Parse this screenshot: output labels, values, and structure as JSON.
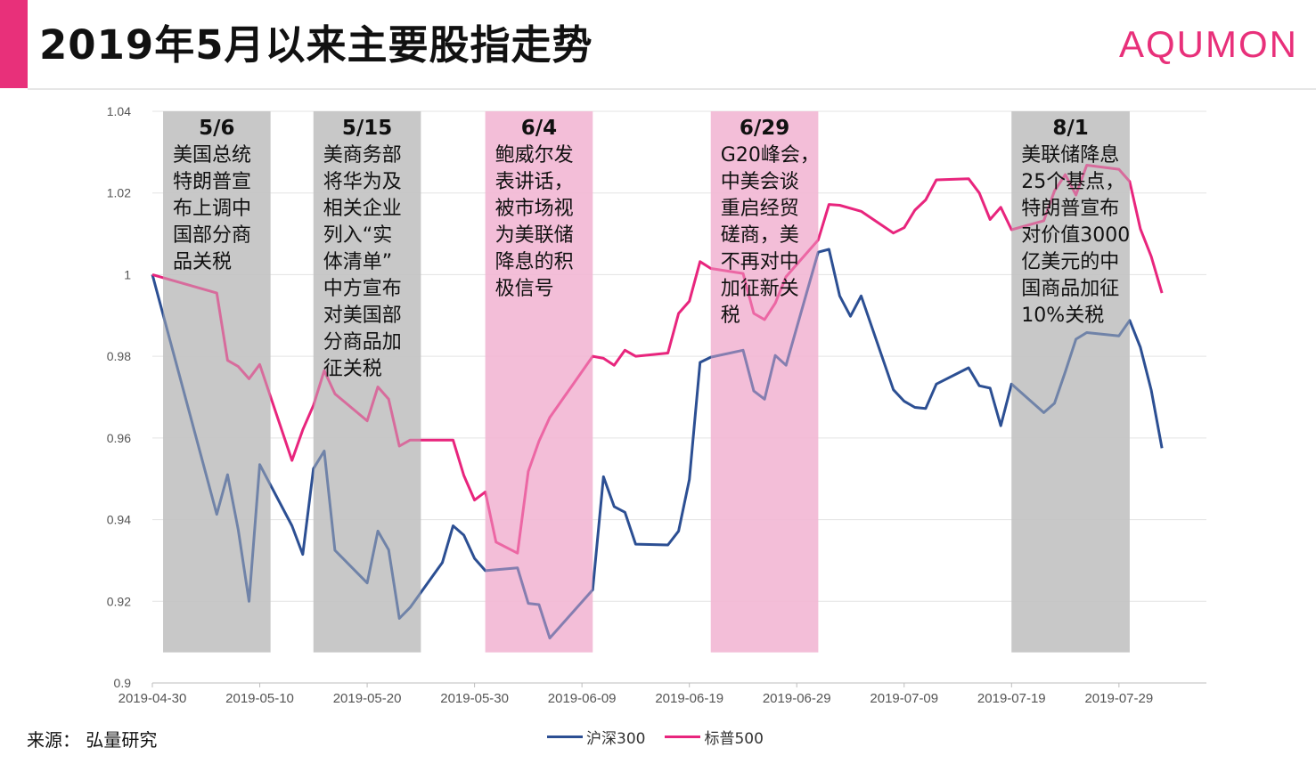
{
  "header": {
    "title": "2019年5月以来主要股指走势",
    "brand": "AQUMON"
  },
  "footer": {
    "source": "来源： 弘量研究"
  },
  "colors": {
    "accent": "#e8307a",
    "csi300": "#2c4f93",
    "sp500": "#e8257d",
    "gray_band": "#c4c4c4",
    "pink_band": "#f2b8d4"
  },
  "chart_data": {
    "type": "line",
    "title": "2019年5月以来主要股指走势",
    "xlabel": "",
    "ylabel": "",
    "ylim": [
      0.9,
      1.04
    ],
    "y_ticks": [
      "0.9",
      "0.92",
      "0.94",
      "0.96",
      "0.98",
      "1",
      "1.02",
      "1.04"
    ],
    "x_ticks": [
      "2019-04-30",
      "2019-05-10",
      "2019-05-20",
      "2019-05-30",
      "2019-06-09",
      "2019-06-19",
      "2019-06-29",
      "2019-07-09",
      "2019-07-19",
      "2019-07-29"
    ],
    "x_range": [
      "2019-04-30",
      "2019-08-01"
    ],
    "grid": true,
    "legend_position": "bottom",
    "series": [
      {
        "name": "沪深300",
        "color": "#2c4f93",
        "points": [
          [
            "2019-04-30",
            1.0
          ],
          [
            "2019-05-06",
            0.9413
          ],
          [
            "2019-05-07",
            0.951
          ],
          [
            "2019-05-08",
            0.9375
          ],
          [
            "2019-05-09",
            0.92
          ],
          [
            "2019-05-10",
            0.9535
          ],
          [
            "2019-05-13",
            0.9385
          ],
          [
            "2019-05-14",
            0.9315
          ],
          [
            "2019-05-15",
            0.9525
          ],
          [
            "2019-05-16",
            0.9568
          ],
          [
            "2019-05-17",
            0.9325
          ],
          [
            "2019-05-20",
            0.9245
          ],
          [
            "2019-05-21",
            0.9372
          ],
          [
            "2019-05-22",
            0.9326
          ],
          [
            "2019-05-23",
            0.9158
          ],
          [
            "2019-05-24",
            0.9185
          ],
          [
            "2019-05-27",
            0.9295
          ],
          [
            "2019-05-28",
            0.9385
          ],
          [
            "2019-05-29",
            0.9362
          ],
          [
            "2019-05-30",
            0.9305
          ],
          [
            "2019-05-31",
            0.9275
          ],
          [
            "2019-06-03",
            0.9282
          ],
          [
            "2019-06-04",
            0.9195
          ],
          [
            "2019-06-05",
            0.9192
          ],
          [
            "2019-06-06",
            0.911
          ],
          [
            "2019-06-10",
            0.9228
          ],
          [
            "2019-06-11",
            0.9505
          ],
          [
            "2019-06-12",
            0.9432
          ],
          [
            "2019-06-13",
            0.9418
          ],
          [
            "2019-06-14",
            0.934
          ],
          [
            "2019-06-17",
            0.9338
          ],
          [
            "2019-06-18",
            0.9372
          ],
          [
            "2019-06-19",
            0.9498
          ],
          [
            "2019-06-20",
            0.9785
          ],
          [
            "2019-06-21",
            0.9798
          ],
          [
            "2019-06-24",
            0.9815
          ],
          [
            "2019-06-25",
            0.9715
          ],
          [
            "2019-06-26",
            0.9695
          ],
          [
            "2019-06-27",
            0.9802
          ],
          [
            "2019-06-28",
            0.9778
          ],
          [
            "2019-07-01",
            1.0055
          ],
          [
            "2019-07-02",
            1.0062
          ],
          [
            "2019-07-03",
            0.9948
          ],
          [
            "2019-07-04",
            0.9898
          ],
          [
            "2019-07-05",
            0.9948
          ],
          [
            "2019-07-08",
            0.9718
          ],
          [
            "2019-07-09",
            0.969
          ],
          [
            "2019-07-10",
            0.9675
          ],
          [
            "2019-07-11",
            0.9672
          ],
          [
            "2019-07-12",
            0.9732
          ],
          [
            "2019-07-15",
            0.9772
          ],
          [
            "2019-07-16",
            0.9728
          ],
          [
            "2019-07-17",
            0.9722
          ],
          [
            "2019-07-18",
            0.963
          ],
          [
            "2019-07-19",
            0.9732
          ],
          [
            "2019-07-22",
            0.9662
          ],
          [
            "2019-07-23",
            0.9685
          ],
          [
            "2019-07-24",
            0.9762
          ],
          [
            "2019-07-25",
            0.9842
          ],
          [
            "2019-07-26",
            0.9858
          ],
          [
            "2019-07-29",
            0.985
          ],
          [
            "2019-07-30",
            0.9888
          ],
          [
            "2019-07-31",
            0.9822
          ],
          [
            "2019-08-01",
            0.9718
          ],
          [
            "2019-08-02",
            0.9575
          ]
        ]
      },
      {
        "name": "标普500",
        "color": "#e8257d",
        "points": [
          [
            "2019-04-30",
            1.0
          ],
          [
            "2019-05-06",
            0.9955
          ],
          [
            "2019-05-07",
            0.979
          ],
          [
            "2019-05-08",
            0.9775
          ],
          [
            "2019-05-09",
            0.9745
          ],
          [
            "2019-05-10",
            0.978
          ],
          [
            "2019-05-13",
            0.9545
          ],
          [
            "2019-05-14",
            0.962
          ],
          [
            "2019-05-15",
            0.968
          ],
          [
            "2019-05-16",
            0.9765
          ],
          [
            "2019-05-17",
            0.9708
          ],
          [
            "2019-05-20",
            0.9642
          ],
          [
            "2019-05-21",
            0.9725
          ],
          [
            "2019-05-22",
            0.9695
          ],
          [
            "2019-05-23",
            0.958
          ],
          [
            "2019-05-24",
            0.9595
          ],
          [
            "2019-05-28",
            0.9595
          ],
          [
            "2019-05-29",
            0.9508
          ],
          [
            "2019-05-30",
            0.9448
          ],
          [
            "2019-05-31",
            0.9468
          ],
          [
            "2019-06-01",
            0.9345
          ],
          [
            "2019-06-03",
            0.9318
          ],
          [
            "2019-06-04",
            0.9518
          ],
          [
            "2019-06-05",
            0.9592
          ],
          [
            "2019-06-06",
            0.965
          ],
          [
            "2019-06-10",
            0.98
          ],
          [
            "2019-06-11",
            0.9795
          ],
          [
            "2019-06-12",
            0.9778
          ],
          [
            "2019-06-13",
            0.9815
          ],
          [
            "2019-06-14",
            0.98
          ],
          [
            "2019-06-17",
            0.9808
          ],
          [
            "2019-06-18",
            0.9905
          ],
          [
            "2019-06-19",
            0.9935
          ],
          [
            "2019-06-20",
            1.0032
          ],
          [
            "2019-06-21",
            1.0015
          ],
          [
            "2019-06-24",
            1.0003
          ],
          [
            "2019-06-25",
            0.9905
          ],
          [
            "2019-06-26",
            0.989
          ],
          [
            "2019-06-27",
            0.993
          ],
          [
            "2019-06-28",
            0.9995
          ],
          [
            "2019-07-01",
            1.0085
          ],
          [
            "2019-07-02",
            1.0172
          ],
          [
            "2019-07-03",
            1.017
          ],
          [
            "2019-07-05",
            1.0155
          ],
          [
            "2019-07-08",
            1.0102
          ],
          [
            "2019-07-09",
            1.0115
          ],
          [
            "2019-07-10",
            1.0158
          ],
          [
            "2019-07-11",
            1.0183
          ],
          [
            "2019-07-12",
            1.0232
          ],
          [
            "2019-07-15",
            1.0235
          ],
          [
            "2019-07-16",
            1.02
          ],
          [
            "2019-07-17",
            1.0135
          ],
          [
            "2019-07-18",
            1.0165
          ],
          [
            "2019-07-19",
            1.011
          ],
          [
            "2019-07-22",
            1.0132
          ],
          [
            "2019-07-23",
            1.0205
          ],
          [
            "2019-07-24",
            1.0245
          ],
          [
            "2019-07-25",
            1.0195
          ],
          [
            "2019-07-26",
            1.0268
          ],
          [
            "2019-07-29",
            1.0258
          ],
          [
            "2019-07-30",
            1.0228
          ],
          [
            "2019-07-31",
            1.0112
          ],
          [
            "2019-08-01",
            1.0045
          ],
          [
            "2019-08-02",
            0.9955
          ]
        ]
      }
    ],
    "annotations": [
      {
        "start": "2019-05-01",
        "end": "2019-05-11",
        "band": "gray",
        "date_label": "5/6",
        "lines": [
          "美国总统",
          "特朗普宣",
          "布上调中",
          "国部分商",
          "品关税"
        ]
      },
      {
        "start": "2019-05-15",
        "end": "2019-05-25",
        "band": "gray",
        "date_label": "5/15",
        "lines": [
          "美商务部",
          "将华为及",
          "相关企业",
          "列入“实",
          "体清单”",
          "中方宣布",
          "对美国部",
          "分商品加",
          "征关税"
        ]
      },
      {
        "start": "2019-05-31",
        "end": "2019-06-10",
        "band": "pink",
        "date_label": "6/4",
        "lines": [
          "鲍威尔发",
          "表讲话，",
          "被市场视",
          "为美联储",
          "降息的积",
          "极信号"
        ]
      },
      {
        "start": "2019-06-21",
        "end": "2019-07-01",
        "band": "pink",
        "date_label": "6/29",
        "lines": [
          "G20峰会，",
          "中美会谈",
          "重启经贸",
          "磋商，美",
          "不再对中",
          "加征新关",
          "税"
        ]
      },
      {
        "start": "2019-07-19",
        "end": "2019-07-30",
        "band": "gray",
        "date_label": "8/1",
        "lines": [
          "美联储降息",
          "25个基点，",
          "特朗普宣布",
          "对价值3000",
          "亿美元的中",
          "国商品加征",
          "10%关税"
        ]
      }
    ]
  }
}
